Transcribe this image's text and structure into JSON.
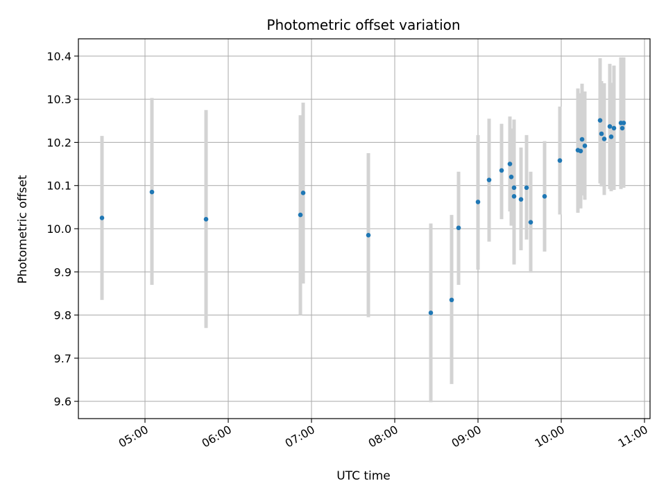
{
  "chart_data": {
    "type": "scatter",
    "title": "Photometric offset variation",
    "xlabel": "UTC time",
    "ylabel": "Photometric offset",
    "x_ticks": [
      "05:00",
      "06:00",
      "07:00",
      "08:00",
      "09:00",
      "10:00",
      "11:00"
    ],
    "y_ticks": [
      "9.6",
      "9.7",
      "9.8",
      "9.9",
      "10.0",
      "10.1",
      "10.2",
      "10.3",
      "10.4"
    ],
    "xlim": [
      "04:12",
      "11:04"
    ],
    "ylim": [
      9.56,
      10.44
    ],
    "grid": true,
    "colors": {
      "point": "#1f77b4",
      "errorbar": "#d3d3d3",
      "grid": "#b0b0b0"
    },
    "points": [
      {
        "x": "04:29",
        "y": 10.025,
        "lo": 9.835,
        "hi": 10.215
      },
      {
        "x": "05:05",
        "y": 10.085,
        "lo": 9.87,
        "hi": 10.303
      },
      {
        "x": "05:44",
        "y": 10.022,
        "lo": 9.77,
        "hi": 10.275
      },
      {
        "x": "06:52",
        "y": 10.032,
        "lo": 9.8,
        "hi": 10.263
      },
      {
        "x": "06:54",
        "y": 10.083,
        "lo": 9.873,
        "hi": 10.292
      },
      {
        "x": "07:41",
        "y": 9.985,
        "lo": 9.795,
        "hi": 10.175
      },
      {
        "x": "08:26",
        "y": 9.805,
        "lo": 9.598,
        "hi": 10.012
      },
      {
        "x": "08:41",
        "y": 9.835,
        "lo": 9.64,
        "hi": 10.032
      },
      {
        "x": "08:46",
        "y": 10.002,
        "lo": 9.87,
        "hi": 10.132
      },
      {
        "x": "09:00",
        "y": 10.062,
        "lo": 9.905,
        "hi": 10.217
      },
      {
        "x": "09:08",
        "y": 10.113,
        "lo": 9.97,
        "hi": 10.255
      },
      {
        "x": "09:17",
        "y": 10.135,
        "lo": 10.022,
        "hi": 10.243
      },
      {
        "x": "09:23",
        "y": 10.15,
        "lo": 10.04,
        "hi": 10.26
      },
      {
        "x": "09:24",
        "y": 10.12,
        "lo": 10.007,
        "hi": 10.232
      },
      {
        "x": "09:26",
        "y": 10.095,
        "lo": 9.937,
        "hi": 10.253
      },
      {
        "x": "09:26",
        "y": 10.075,
        "lo": 9.917,
        "hi": 10.232
      },
      {
        "x": "09:31",
        "y": 10.068,
        "lo": 9.95,
        "hi": 10.188
      },
      {
        "x": "09:35",
        "y": 10.095,
        "lo": 9.975,
        "hi": 10.217
      },
      {
        "x": "09:38",
        "y": 10.015,
        "lo": 9.898,
        "hi": 10.132
      },
      {
        "x": "09:48",
        "y": 10.075,
        "lo": 9.947,
        "hi": 10.203
      },
      {
        "x": "09:59",
        "y": 10.158,
        "lo": 10.033,
        "hi": 10.283
      },
      {
        "x": "10:12",
        "y": 10.182,
        "lo": 10.037,
        "hi": 10.325
      },
      {
        "x": "10:14",
        "y": 10.18,
        "lo": 10.047,
        "hi": 10.314
      },
      {
        "x": "10:15",
        "y": 10.207,
        "lo": 10.077,
        "hi": 10.336
      },
      {
        "x": "10:17",
        "y": 10.192,
        "lo": 10.067,
        "hi": 10.318
      },
      {
        "x": "10:28",
        "y": 10.251,
        "lo": 10.105,
        "hi": 10.395
      },
      {
        "x": "10:29",
        "y": 10.22,
        "lo": 10.098,
        "hi": 10.342
      },
      {
        "x": "10:31",
        "y": 10.208,
        "lo": 10.078,
        "hi": 10.337
      },
      {
        "x": "10:35",
        "y": 10.237,
        "lo": 10.092,
        "hi": 10.382
      },
      {
        "x": "10:36",
        "y": 10.213,
        "lo": 10.087,
        "hi": 10.338
      },
      {
        "x": "10:38",
        "y": 10.233,
        "lo": 10.09,
        "hi": 10.378
      },
      {
        "x": "10:43",
        "y": 10.245,
        "lo": 10.092,
        "hi": 10.397
      },
      {
        "x": "10:44",
        "y": 10.233,
        "lo": 10.1,
        "hi": 10.367
      },
      {
        "x": "10:45",
        "y": 10.245,
        "lo": 10.095,
        "hi": 10.397
      }
    ]
  }
}
